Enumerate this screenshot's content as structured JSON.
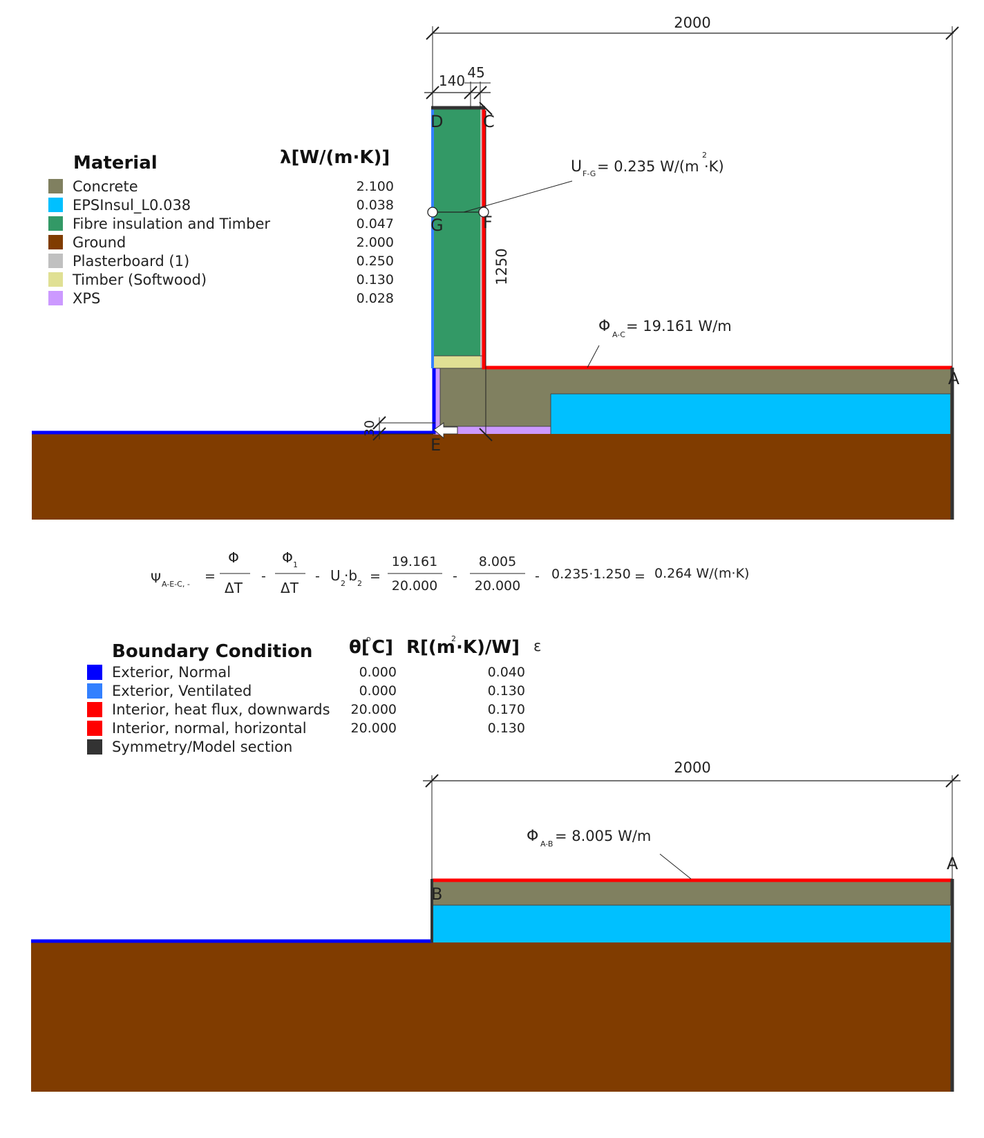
{
  "colors": {
    "concrete": "#808060",
    "eps": "#00c0ff",
    "fibre": "#339966",
    "ground": "#803c00",
    "plaster": "#c0c0c0",
    "timber": "#e0e094",
    "xps": "#cc99ff",
    "exterior_normal": "#0000ff",
    "exterior_ventilated": "#3380ff",
    "interior": "#ff0000",
    "symmetry": "#333333"
  },
  "top_model": {
    "dim_width": "2000",
    "dim_insul": "140",
    "dim_board": "45",
    "dim_height": "1250",
    "dim_step": "30",
    "points": {
      "A": "A",
      "C": "C",
      "D": "D",
      "E": "E",
      "F": "F",
      "G": "G"
    },
    "u_label": {
      "sym": "U",
      "sub": "F-G",
      "value": "= 0.235 W/(m",
      "sup": "2",
      "unit_end": "·K)"
    },
    "phi_label": {
      "sym": "Φ",
      "sub": "A-C",
      "value": "= 19.161 W/m"
    }
  },
  "material_legend": {
    "title": "Material",
    "lambda_header": "λ[W/(m·K)]",
    "items": [
      {
        "name": "Concrete",
        "value": "2.100",
        "color": "#808060"
      },
      {
        "name": "EPSInsul_L0.038",
        "value": "0.038",
        "color": "#00c0ff"
      },
      {
        "name": "Fibre insulation and Timber",
        "value": "0.047",
        "color": "#339966"
      },
      {
        "name": "Ground",
        "value": "2.000",
        "color": "#803c00"
      },
      {
        "name": "Plasterboard (1)",
        "value": "0.250",
        "color": "#c0c0c0"
      },
      {
        "name": "Timber (Softwood)",
        "value": "0.130",
        "color": "#e0e094"
      },
      {
        "name": "XPS",
        "value": "0.028",
        "color": "#cc99ff"
      }
    ]
  },
  "formula": {
    "psi": "Ψ",
    "psi_sub": "A-E-C, ‐",
    "eq1": "=",
    "phi": "Φ",
    "delta_t": "ΔT",
    "minus1": "-",
    "phi1": "Φ",
    "phi1_sub": "1",
    "delta_t2": "ΔT",
    "minus2": "-",
    "u2b2": "U",
    "u2b2_mid": "·b",
    "u2_sub": "2",
    "b2_sub": "2",
    "eq2": "=",
    "n1": "19.161",
    "d1": "20.000",
    "minus3": "-",
    "n2": "8.005",
    "d2": "20.000",
    "minus4": "-",
    "term": "0.235·1.250",
    "eq3": "=",
    "result": "0.264 W/(m·K)"
  },
  "boundary_legend": {
    "title": "Boundary Condition",
    "theta_header": "θ[",
    "theta_deg": "o",
    "theta_unit": "C]",
    "r_header": "R[(m",
    "r_sup": "2",
    "r_unit": "·K)/W]",
    "eps_header": "ε",
    "items": [
      {
        "name": "Exterior, Normal",
        "theta": "0.000",
        "r": "0.040",
        "color": "#0000ff"
      },
      {
        "name": "Exterior, Ventilated",
        "theta": "0.000",
        "r": "0.130",
        "color": "#3380ff"
      },
      {
        "name": "Interior, heat flux, downwards",
        "theta": "20.000",
        "r": "0.170",
        "color": "#ff0000"
      },
      {
        "name": "Interior, normal, horizontal",
        "theta": "20.000",
        "r": "0.130",
        "color": "#ff0000"
      },
      {
        "name": "Symmetry/Model section",
        "theta": "",
        "r": "",
        "color": "#333333"
      }
    ]
  },
  "bottom_model": {
    "dim_width": "2000",
    "points": {
      "A": "A",
      "B": "B"
    },
    "phi_label": {
      "sym": "Φ",
      "sub": "A-B",
      "value": "= 8.005 W/m"
    }
  }
}
